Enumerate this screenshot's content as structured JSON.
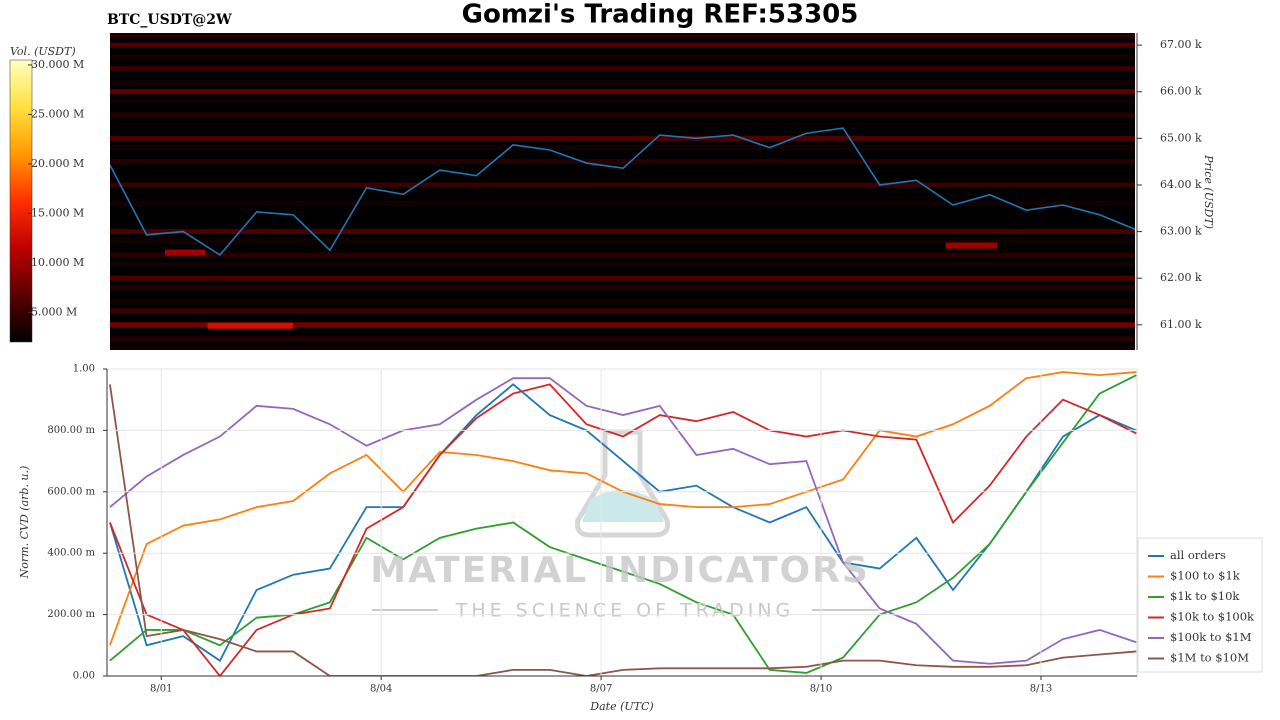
{
  "title": "Gomzi's Trading REF:53305",
  "symbol": "BTC_USDT@2W",
  "watermark": {
    "brand": "MATERIAL INDICATORS",
    "tagline": "THE SCIENCE OF TRADING"
  },
  "chart_data": [
    {
      "type": "heatmap",
      "x": [
        -0.7,
        -0.2,
        0.3,
        0.8,
        1.3,
        1.8,
        2.3,
        2.8,
        3.3,
        3.8,
        4.3,
        4.8,
        5.3,
        5.8,
        6.3,
        6.8,
        7.3,
        7.8,
        8.3,
        8.8,
        9.3,
        9.8,
        10.3,
        10.8,
        11.3,
        11.8,
        12.3,
        12.8,
        13.3
      ],
      "values": [
        64.43,
        62.93,
        63.0,
        62.5,
        63.42,
        63.36,
        62.6,
        63.94,
        63.8,
        64.32,
        64.2,
        64.86,
        64.75,
        64.47,
        64.36,
        65.07,
        65.0,
        65.07,
        64.8,
        65.11,
        65.22,
        64.0,
        64.1,
        63.57,
        63.79,
        63.46,
        63.57,
        63.36,
        63.04
      ],
      "color": "#1f77b4",
      "xlim": [
        -0.74,
        13.31
      ],
      "ylim": [
        60.46,
        67.26
      ],
      "yticks": [
        {
          "value": 61,
          "label": "61.00 k"
        },
        {
          "value": 62,
          "label": "62.00 k"
        },
        {
          "value": 63,
          "label": "63.00 k"
        },
        {
          "value": 64,
          "label": "64.00 k"
        },
        {
          "value": 65,
          "label": "65.00 k"
        },
        {
          "value": 66,
          "label": "66.00 k"
        },
        {
          "value": 67,
          "label": "67.00 k"
        }
      ],
      "ylabel": "Price (USDT)",
      "bands": {
        "prices": [
          67.2,
          67.0,
          66.75,
          66.5,
          66.2,
          66.0,
          65.8,
          65.5,
          65.0,
          64.8,
          64.5,
          64.0,
          63.6,
          63.0,
          62.8,
          62.5,
          62.3,
          62.0,
          61.8,
          61.5,
          61.3,
          61.0,
          60.7,
          60.5
        ],
        "values": [
          4,
          6,
          3,
          5,
          3,
          7,
          3,
          4,
          6,
          3,
          4,
          5,
          3,
          6,
          3,
          4,
          3,
          6,
          4,
          3,
          5,
          8,
          4,
          3
        ]
      },
      "walls": [
        {
          "x": [
            0.63,
            1.8
          ],
          "price": 60.98,
          "value": 13
        },
        {
          "x": [
            0.05,
            0.6
          ],
          "price": 62.55,
          "value": 10
        },
        {
          "x": [
            10.7,
            11.4
          ],
          "price": 62.7,
          "value": 10
        }
      ],
      "colorbar": {
        "label": "Vol. (USDT)",
        "lim": [
          2,
          30.5
        ],
        "ticks": [
          {
            "value": 5,
            "label": "5.000 M"
          },
          {
            "value": 10,
            "label": "10.000 M"
          },
          {
            "value": 15,
            "label": "15.000 M"
          },
          {
            "value": 20,
            "label": "20.000 M"
          },
          {
            "value": 25,
            "label": "25.000 M"
          },
          {
            "value": 30,
            "label": "30.000 M"
          }
        ],
        "colormap": [
          "#000000",
          "#5a0000",
          "#c00000",
          "#ff3000",
          "#ff9a00",
          "#ffe040",
          "#ffffc0"
        ]
      }
    },
    {
      "type": "line",
      "x": [
        -0.7,
        -0.2,
        0.3,
        0.8,
        1.3,
        1.8,
        2.3,
        2.8,
        3.3,
        3.8,
        4.3,
        4.8,
        5.3,
        5.8,
        6.3,
        6.8,
        7.3,
        7.8,
        8.3,
        8.8,
        9.3,
        9.8,
        10.3,
        10.8,
        11.3,
        11.8,
        12.3,
        12.8,
        13.3
      ],
      "xlim": [
        -0.74,
        13.31
      ],
      "xticks": [
        {
          "value": 0,
          "label": "8/01"
        },
        {
          "value": 3,
          "label": "8/04"
        },
        {
          "value": 6,
          "label": "8/07"
        },
        {
          "value": 9,
          "label": "8/10"
        },
        {
          "value": 12,
          "label": "8/13"
        }
      ],
      "xlabel": "Date (UTC)",
      "ylim": [
        0,
        1
      ],
      "yticks": [
        {
          "value": 0,
          "label": "0.00"
        },
        {
          "value": 0.2,
          "label": "200.00 m"
        },
        {
          "value": 0.4,
          "label": "400.00 m"
        },
        {
          "value": 0.6,
          "label": "600.00 m"
        },
        {
          "value": 0.8,
          "label": "800.00 m"
        },
        {
          "value": 1,
          "label": "1.00"
        }
      ],
      "ylabel": "Norm. CVD (arb. u.)",
      "grid": true,
      "legend": "right",
      "series": [
        {
          "name": "all orders",
          "color": "#1f77b4",
          "values": [
            0.5,
            0.1,
            0.13,
            0.05,
            0.28,
            0.33,
            0.35,
            0.55,
            0.55,
            0.72,
            0.85,
            0.95,
            0.85,
            0.8,
            0.7,
            0.6,
            0.62,
            0.55,
            0.5,
            0.55,
            0.37,
            0.35,
            0.45,
            0.28,
            0.43,
            0.6,
            0.78,
            0.85,
            0.8
          ]
        },
        {
          "name": "$100 to $1k",
          "color": "#ff7f0e",
          "values": [
            0.1,
            0.43,
            0.49,
            0.51,
            0.55,
            0.57,
            0.66,
            0.72,
            0.6,
            0.73,
            0.72,
            0.7,
            0.67,
            0.66,
            0.6,
            0.56,
            0.55,
            0.55,
            0.56,
            0.6,
            0.64,
            0.8,
            0.78,
            0.82,
            0.88,
            0.97,
            0.99,
            0.98,
            0.99
          ]
        },
        {
          "name": "$1k to $10k",
          "color": "#2ca02c",
          "values": [
            0.05,
            0.15,
            0.15,
            0.1,
            0.19,
            0.2,
            0.24,
            0.45,
            0.38,
            0.45,
            0.48,
            0.5,
            0.42,
            0.38,
            0.34,
            0.3,
            0.24,
            0.2,
            0.02,
            0.01,
            0.06,
            0.2,
            0.24,
            0.32,
            0.43,
            0.6,
            0.76,
            0.92,
            0.98
          ]
        },
        {
          "name": "$10k to $100k",
          "color": "#d62728",
          "values": [
            0.5,
            0.2,
            0.15,
            0.0,
            0.15,
            0.2,
            0.22,
            0.48,
            0.55,
            0.72,
            0.84,
            0.92,
            0.95,
            0.82,
            0.78,
            0.85,
            0.83,
            0.86,
            0.8,
            0.78,
            0.8,
            0.78,
            0.77,
            0.5,
            0.62,
            0.78,
            0.9,
            0.85,
            0.79
          ]
        },
        {
          "name": "$100k to $1M",
          "color": "#9467bd",
          "values": [
            0.55,
            0.65,
            0.72,
            0.78,
            0.88,
            0.87,
            0.82,
            0.75,
            0.8,
            0.82,
            0.9,
            0.97,
            0.97,
            0.88,
            0.85,
            0.88,
            0.72,
            0.74,
            0.69,
            0.7,
            0.37,
            0.22,
            0.17,
            0.05,
            0.04,
            0.05,
            0.12,
            0.15,
            0.11
          ]
        },
        {
          "name": "$1M to $10M",
          "color": "#8c564b",
          "values": [
            0.95,
            0.13,
            0.15,
            0.12,
            0.08,
            0.08,
            0.0,
            0.0,
            0.0,
            0.0,
            0.0,
            0.02,
            0.02,
            0.0,
            0.02,
            0.025,
            0.025,
            0.025,
            0.025,
            0.03,
            0.05,
            0.05,
            0.035,
            0.03,
            0.03,
            0.035,
            0.06,
            0.07,
            0.08
          ]
        }
      ]
    }
  ]
}
